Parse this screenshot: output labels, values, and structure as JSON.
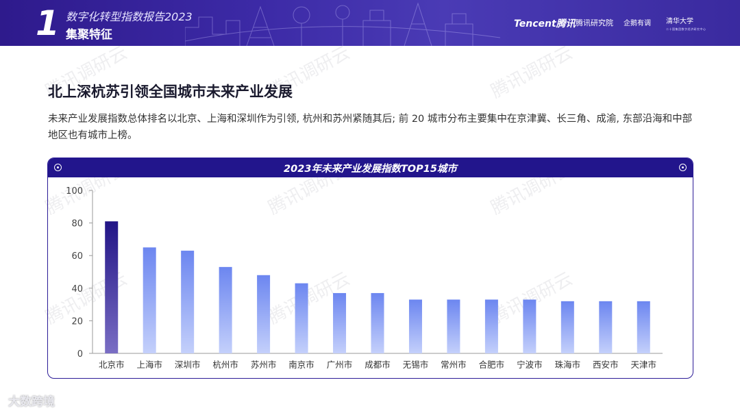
{
  "header": {
    "section_number": "1",
    "report_title": "数字化转型指数报告2023",
    "section_title": "集聚特征",
    "logos": {
      "tencent": "Tencent腾讯",
      "research": "腾讯研究院",
      "qiye": "企鹅有调",
      "tsinghua": "清华大学",
      "tsinghua_sub": "二十国集团数字经济研究中心"
    }
  },
  "page": {
    "title": "北上深杭苏引领全国城市未来产业发展",
    "description": "未来产业发展指数总体排名以北京、上海和深圳作为引领, 杭州和苏州紧随其后;  前 20 城市分布主要集中在京津冀、长三角、成渝, 东部沿海和中部地区也有城市上榜。"
  },
  "chart_data": {
    "type": "bar",
    "title": "2023年未来产业发展指数TOP15城市",
    "categories": [
      "北京市",
      "上海市",
      "深圳市",
      "杭州市",
      "苏州市",
      "南京市",
      "广州市",
      "成都市",
      "无锡市",
      "常州市",
      "合肥市",
      "宁波市",
      "珠海市",
      "西安市",
      "天津市"
    ],
    "values": [
      81,
      65,
      63,
      53,
      48,
      43,
      37,
      37,
      33,
      33,
      33,
      33,
      32,
      32,
      32
    ],
    "xlabel": "",
    "ylabel": "",
    "ylim": [
      0,
      100
    ],
    "yticks": [
      0,
      20,
      40,
      60,
      80,
      100
    ],
    "grid": false,
    "colors": {
      "highlight_top": "#211486",
      "highlight_bottom": "#7a6ec4",
      "bar_top": "#6c86f0",
      "bar_bottom": "#c4d0fb"
    }
  },
  "watermark": "腾讯调研云",
  "footer": {
    "brand": "大数跨境"
  }
}
